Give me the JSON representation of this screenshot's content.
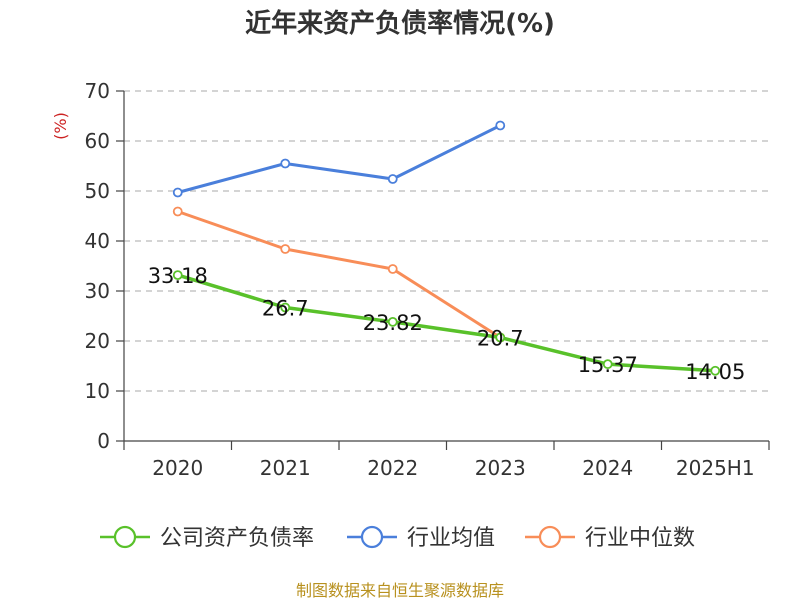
{
  "chart_data": {
    "type": "line",
    "title": "近年来资产负债率情况(%)",
    "ylabel": "(%)",
    "categories": [
      "2020",
      "2021",
      "2022",
      "2023",
      "2024",
      "2025H1"
    ],
    "ylim": [
      0,
      70
    ],
    "yticks": [
      0,
      10,
      20,
      30,
      40,
      50,
      60,
      70
    ],
    "grid": true,
    "legend_position": "bottom",
    "series": [
      {
        "name": "公司资产负债率",
        "color": "#59c12a",
        "values": [
          33.18,
          26.7,
          23.82,
          20.7,
          15.37,
          14.05
        ],
        "data_labels": [
          "33.18",
          "26.7",
          "23.82",
          "20.7",
          "15.37",
          "14.05"
        ]
      },
      {
        "name": "行业均值",
        "color": "#4a7fdb",
        "values": [
          49.7,
          55.5,
          52.4,
          63.1,
          null,
          null
        ],
        "data_labels": []
      },
      {
        "name": "行业中位数",
        "color": "#f88d58",
        "values": [
          45.9,
          38.4,
          34.4,
          20.7,
          null,
          null
        ],
        "data_labels": []
      }
    ]
  },
  "source_note": "制图数据来自恒生聚源数据库",
  "colors": {
    "title": "#333333",
    "ylabel": "#cc2222",
    "axis": "#444444",
    "grid": "#bbbbbb",
    "source": "#b8911f"
  }
}
